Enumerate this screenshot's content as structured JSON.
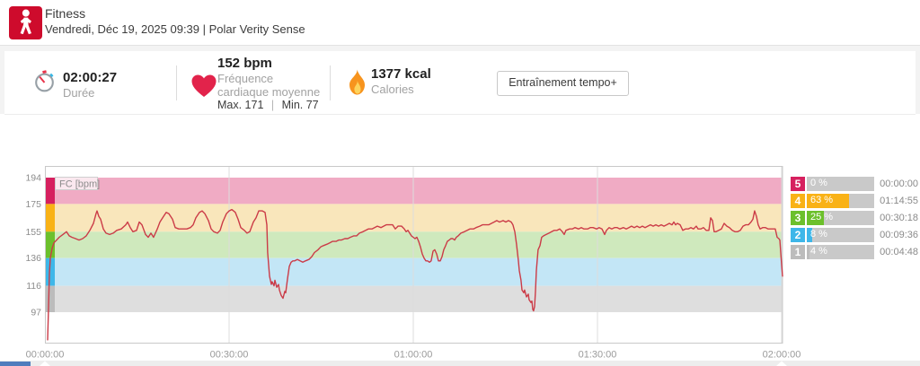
{
  "header": {
    "title": "Fitness",
    "subtitle": "Vendredi, Déc 19, 2025 09:39 | Polar Verity Sense"
  },
  "summary": {
    "duration": {
      "value": "02:00:27",
      "label": "Durée"
    },
    "heart_rate": {
      "value": "152 bpm",
      "label_line1": "Fréquence",
      "label_line2": "cardiaque moyenne",
      "max_label": "Max. 171",
      "separator": "|",
      "min_label": "Min. 77"
    },
    "calories": {
      "value": "1377 kcal",
      "label": "Calories"
    },
    "training_benefit_button": "Entraînement tempo+"
  },
  "chart_data": {
    "type": "line",
    "series_label": "FC [bpm]",
    "line_color": "#cb3b47",
    "stats": {
      "avg_bpm": 152,
      "max_bpm": 171,
      "min_bpm": 77,
      "duration_s": 7227
    },
    "x_axis": {
      "unit": "hh:mm:ss",
      "t_max": 7209,
      "ticks": [
        {
          "t": 0,
          "label": "00:00:00"
        },
        {
          "t": 1800,
          "label": "00:30:00"
        },
        {
          "t": 3600,
          "label": "01:00:00"
        },
        {
          "t": 5400,
          "label": "01:30:00"
        },
        {
          "t": 7200,
          "label": "02:00:00"
        }
      ]
    },
    "y_axis": {
      "bpm_min": 97,
      "bpm_max": 194,
      "ticks": [
        194,
        175,
        155,
        136,
        116,
        97
      ]
    },
    "zones": [
      {
        "zone": "5",
        "pct": 0,
        "pct_label": "0 %",
        "time": "00:00:00",
        "bpm_low": 175,
        "bpm_high": 194,
        "color": "#d6205f",
        "band_color": "#f0abc4"
      },
      {
        "zone": "4",
        "pct": 63,
        "pct_label": "63 %",
        "time": "01:14:55",
        "bpm_low": 155,
        "bpm_high": 175,
        "color": "#f9b216",
        "band_color": "#f9e6bb"
      },
      {
        "zone": "3",
        "pct": 25,
        "pct_label": "25 %",
        "time": "00:30:18",
        "bpm_low": 136,
        "bpm_high": 155,
        "color": "#6cc02c",
        "band_color": "#cfe9bd"
      },
      {
        "zone": "2",
        "pct": 8,
        "pct_label": "8 %",
        "time": "00:09:36",
        "bpm_low": 116,
        "bpm_high": 136,
        "color": "#3eb7e9",
        "band_color": "#c3e6f6"
      },
      {
        "zone": "1",
        "pct": 4,
        "pct_label": "4 %",
        "time": "00:04:48",
        "bpm_low": 97,
        "bpm_high": 116,
        "color": "#bcbcbc",
        "band_color": "#dedede"
      }
    ],
    "hr_points": [
      [
        26,
        77
      ],
      [
        35,
        100
      ],
      [
        44,
        125
      ],
      [
        53,
        136
      ],
      [
        70,
        143
      ],
      [
        88,
        147
      ],
      [
        114,
        149
      ],
      [
        140,
        151
      ],
      [
        176,
        153
      ],
      [
        211,
        155
      ],
      [
        237,
        152
      ],
      [
        263,
        151
      ],
      [
        299,
        150
      ],
      [
        334,
        149
      ],
      [
        369,
        150
      ],
      [
        404,
        152
      ],
      [
        439,
        156
      ],
      [
        474,
        161
      ],
      [
        500,
        168
      ],
      [
        509,
        170
      ],
      [
        527,
        166
      ],
      [
        544,
        164
      ],
      [
        571,
        157
      ],
      [
        597,
        154
      ],
      [
        632,
        153
      ],
      [
        667,
        154
      ],
      [
        702,
        156
      ],
      [
        746,
        157
      ],
      [
        790,
        160
      ],
      [
        808,
        162
      ],
      [
        834,
        158
      ],
      [
        860,
        155
      ],
      [
        896,
        156
      ],
      [
        922,
        162
      ],
      [
        948,
        160
      ],
      [
        983,
        153
      ],
      [
        1010,
        151
      ],
      [
        1036,
        154
      ],
      [
        1062,
        151
      ],
      [
        1098,
        157
      ],
      [
        1124,
        162
      ],
      [
        1159,
        166
      ],
      [
        1185,
        169
      ],
      [
        1212,
        168
      ],
      [
        1247,
        164
      ],
      [
        1273,
        158
      ],
      [
        1308,
        157
      ],
      [
        1343,
        157
      ],
      [
        1387,
        157
      ],
      [
        1422,
        158
      ],
      [
        1449,
        160
      ],
      [
        1475,
        165
      ],
      [
        1510,
        169
      ],
      [
        1537,
        170
      ],
      [
        1563,
        168
      ],
      [
        1598,
        163
      ],
      [
        1624,
        157
      ],
      [
        1651,
        155
      ],
      [
        1686,
        154
      ],
      [
        1712,
        156
      ],
      [
        1738,
        162
      ],
      [
        1774,
        168
      ],
      [
        1800,
        170
      ],
      [
        1826,
        171
      ],
      [
        1861,
        169
      ],
      [
        1888,
        164
      ],
      [
        1914,
        158
      ],
      [
        1949,
        156
      ],
      [
        1975,
        154
      ],
      [
        2002,
        155
      ],
      [
        2037,
        162
      ],
      [
        2063,
        165
      ],
      [
        2090,
        170
      ],
      [
        2125,
        170
      ],
      [
        2151,
        169
      ],
      [
        2169,
        160
      ],
      [
        2177,
        140
      ],
      [
        2195,
        123
      ],
      [
        2213,
        117
      ],
      [
        2221,
        119
      ],
      [
        2239,
        116
      ],
      [
        2248,
        120
      ],
      [
        2265,
        115
      ],
      [
        2283,
        117
      ],
      [
        2292,
        113
      ],
      [
        2309,
        109
      ],
      [
        2327,
        107
      ],
      [
        2344,
        112
      ],
      [
        2353,
        111
      ],
      [
        2371,
        121
      ],
      [
        2388,
        130
      ],
      [
        2406,
        133
      ],
      [
        2423,
        134
      ],
      [
        2441,
        134
      ],
      [
        2467,
        135
      ],
      [
        2494,
        134
      ],
      [
        2520,
        133
      ],
      [
        2546,
        134
      ],
      [
        2581,
        135
      ],
      [
        2608,
        137
      ],
      [
        2634,
        140
      ],
      [
        2669,
        142
      ],
      [
        2695,
        144
      ],
      [
        2722,
        145
      ],
      [
        2757,
        146
      ],
      [
        2783,
        147
      ],
      [
        2810,
        148
      ],
      [
        2845,
        148
      ],
      [
        2871,
        149
      ],
      [
        2897,
        149
      ],
      [
        2932,
        150
      ],
      [
        2959,
        150
      ],
      [
        2985,
        151
      ],
      [
        3020,
        152
      ],
      [
        3047,
        152
      ],
      [
        3073,
        154
      ],
      [
        3108,
        155
      ],
      [
        3135,
        156
      ],
      [
        3161,
        157
      ],
      [
        3196,
        157
      ],
      [
        3222,
        158
      ],
      [
        3249,
        159
      ],
      [
        3284,
        158
      ],
      [
        3310,
        159
      ],
      [
        3336,
        160
      ],
      [
        3363,
        160
      ],
      [
        3398,
        160
      ],
      [
        3424,
        157
      ],
      [
        3451,
        159
      ],
      [
        3486,
        159
      ],
      [
        3512,
        157
      ],
      [
        3530,
        155
      ],
      [
        3547,
        156
      ],
      [
        3565,
        154
      ],
      [
        3582,
        152
      ],
      [
        3600,
        151
      ],
      [
        3617,
        150
      ],
      [
        3635,
        151
      ],
      [
        3653,
        148
      ],
      [
        3670,
        144
      ],
      [
        3688,
        139
      ],
      [
        3705,
        136
      ],
      [
        3723,
        134
      ],
      [
        3740,
        134
      ],
      [
        3758,
        133
      ],
      [
        3775,
        134
      ],
      [
        3793,
        141
      ],
      [
        3810,
        142
      ],
      [
        3828,
        139
      ],
      [
        3846,
        134
      ],
      [
        3863,
        134
      ],
      [
        3881,
        137
      ],
      [
        3898,
        142
      ],
      [
        3916,
        145
      ],
      [
        3933,
        148
      ],
      [
        3951,
        149
      ],
      [
        3968,
        150
      ],
      [
        3986,
        150
      ],
      [
        4004,
        149
      ],
      [
        4021,
        151
      ],
      [
        4039,
        152
      ],
      [
        4065,
        154
      ],
      [
        4100,
        155
      ],
      [
        4127,
        156
      ],
      [
        4153,
        157
      ],
      [
        4188,
        157
      ],
      [
        4214,
        158
      ],
      [
        4250,
        159
      ],
      [
        4276,
        160
      ],
      [
        4302,
        160
      ],
      [
        4337,
        160
      ],
      [
        4364,
        161
      ],
      [
        4390,
        162
      ],
      [
        4416,
        163
      ],
      [
        4443,
        162
      ],
      [
        4478,
        163
      ],
      [
        4504,
        162
      ],
      [
        4530,
        163
      ],
      [
        4557,
        162
      ],
      [
        4574,
        160
      ],
      [
        4592,
        155
      ],
      [
        4609,
        146
      ],
      [
        4627,
        134
      ],
      [
        4636,
        127
      ],
      [
        4653,
        120
      ],
      [
        4662,
        113
      ],
      [
        4680,
        111
      ],
      [
        4688,
        113
      ],
      [
        4706,
        108
      ],
      [
        4724,
        110
      ],
      [
        4732,
        106
      ],
      [
        4750,
        104
      ],
      [
        4759,
        105
      ],
      [
        4768,
        99
      ],
      [
        4776,
        98
      ],
      [
        4785,
        101
      ],
      [
        4794,
        112
      ],
      [
        4803,
        127
      ],
      [
        4820,
        142
      ],
      [
        4838,
        145
      ],
      [
        4855,
        151
      ],
      [
        4873,
        152
      ],
      [
        4899,
        153
      ],
      [
        4926,
        154
      ],
      [
        4952,
        155
      ],
      [
        4978,
        156
      ],
      [
        5005,
        156
      ],
      [
        5031,
        157
      ],
      [
        5057,
        155
      ],
      [
        5075,
        153
      ],
      [
        5092,
        156
      ],
      [
        5128,
        157
      ],
      [
        5154,
        157
      ],
      [
        5180,
        158
      ],
      [
        5215,
        157
      ],
      [
        5242,
        158
      ],
      [
        5268,
        157
      ],
      [
        5303,
        157
      ],
      [
        5330,
        158
      ],
      [
        5356,
        158
      ],
      [
        5391,
        157
      ],
      [
        5417,
        158
      ],
      [
        5444,
        157
      ],
      [
        5470,
        153
      ],
      [
        5488,
        156
      ],
      [
        5514,
        158
      ],
      [
        5540,
        157
      ],
      [
        5567,
        158
      ],
      [
        5593,
        158
      ],
      [
        5619,
        157
      ],
      [
        5655,
        158
      ],
      [
        5681,
        157
      ],
      [
        5707,
        158
      ],
      [
        5733,
        159
      ],
      [
        5760,
        158
      ],
      [
        5786,
        159
      ],
      [
        5813,
        158
      ],
      [
        5839,
        159
      ],
      [
        5865,
        158
      ],
      [
        5892,
        159
      ],
      [
        5918,
        160
      ],
      [
        5944,
        159
      ],
      [
        5971,
        160
      ],
      [
        5997,
        159
      ],
      [
        6023,
        160
      ],
      [
        6050,
        159
      ],
      [
        6076,
        160
      ],
      [
        6102,
        161
      ],
      [
        6129,
        160
      ],
      [
        6146,
        162
      ],
      [
        6164,
        160
      ],
      [
        6181,
        161
      ],
      [
        6208,
        160
      ],
      [
        6234,
        156
      ],
      [
        6260,
        157
      ],
      [
        6287,
        157
      ],
      [
        6313,
        158
      ],
      [
        6339,
        157
      ],
      [
        6366,
        159
      ],
      [
        6383,
        157
      ],
      [
        6410,
        157
      ],
      [
        6436,
        158
      ],
      [
        6462,
        156
      ],
      [
        6489,
        156
      ],
      [
        6506,
        165
      ],
      [
        6524,
        163
      ],
      [
        6541,
        155
      ],
      [
        6559,
        155
      ],
      [
        6585,
        156
      ],
      [
        6612,
        157
      ],
      [
        6638,
        161
      ],
      [
        6664,
        159
      ],
      [
        6690,
        158
      ],
      [
        6717,
        156
      ],
      [
        6743,
        155
      ],
      [
        6770,
        155
      ],
      [
        6796,
        156
      ],
      [
        6822,
        159
      ],
      [
        6849,
        160
      ],
      [
        6875,
        160
      ],
      [
        6901,
        162
      ],
      [
        6919,
        164
      ],
      [
        6936,
        170
      ],
      [
        6954,
        166
      ],
      [
        6971,
        160
      ],
      [
        6989,
        157
      ],
      [
        7015,
        158
      ],
      [
        7042,
        158
      ],
      [
        7068,
        157
      ],
      [
        7095,
        157
      ],
      [
        7121,
        157
      ],
      [
        7138,
        157
      ],
      [
        7156,
        151
      ],
      [
        7173,
        150
      ],
      [
        7182,
        149
      ],
      [
        7191,
        140
      ],
      [
        7200,
        131
      ],
      [
        7209,
        123
      ]
    ]
  }
}
